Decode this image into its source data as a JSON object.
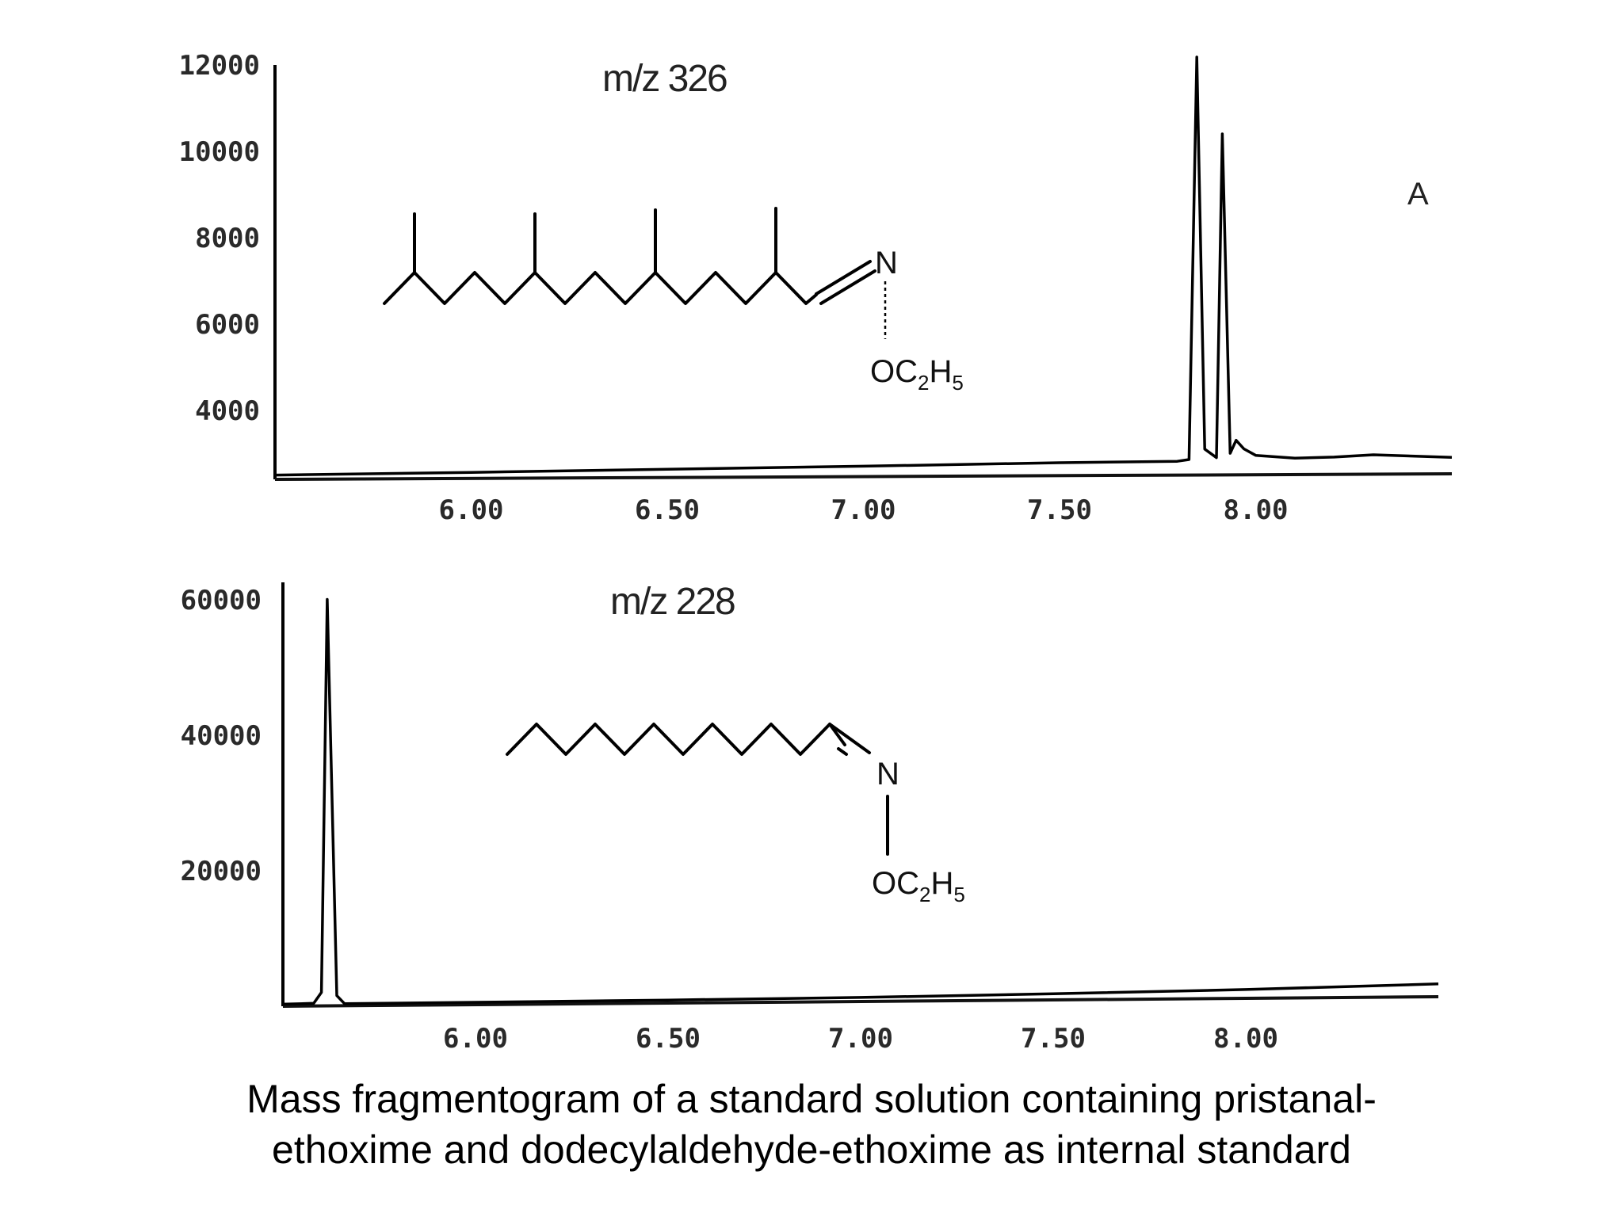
{
  "caption": {
    "line1": "Mass fragmentogram of a standard solution containing pristanal-",
    "line2": "ethoxime and dodecylaldehyde-ethoxime as internal standard"
  },
  "chart_data": [
    {
      "type": "line",
      "title": "m/z 326",
      "panel_label": "A",
      "xlabel": "",
      "ylabel": "",
      "xlim": [
        5.5,
        8.5
      ],
      "ylim": [
        2400,
        12000
      ],
      "x_ticks": [
        "6.00",
        "6.50",
        "7.00",
        "7.50",
        "8.00"
      ],
      "x_tick_values": [
        6.0,
        6.5,
        7.0,
        7.5,
        8.0
      ],
      "y_ticks": [
        "12000",
        "10000",
        "8000",
        "6000",
        "4000"
      ],
      "y_tick_values": [
        12000,
        10000,
        8000,
        6000,
        4000
      ],
      "molecule_labels": {
        "nitrogen": "N",
        "group": "OC",
        "sub1": "2",
        "sub2": "H",
        "sub3": "5"
      },
      "series": [
        {
          "name": "m/z 326",
          "points": [
            [
              5.5,
              2500
            ],
            [
              6.0,
              2540
            ],
            [
              6.5,
              2590
            ],
            [
              7.0,
              2640
            ],
            [
              7.5,
              2700
            ],
            [
              7.8,
              2720
            ],
            [
              7.83,
              2760
            ],
            [
              7.85,
              12200
            ],
            [
              7.87,
              3000
            ],
            [
              7.9,
              2800
            ],
            [
              7.915,
              10300
            ],
            [
              7.935,
              2900
            ],
            [
              7.95,
              3200
            ],
            [
              7.97,
              3000
            ],
            [
              8.0,
              2850
            ],
            [
              8.1,
              2780
            ],
            [
              8.2,
              2800
            ],
            [
              8.3,
              2850
            ],
            [
              8.5,
              2780
            ]
          ]
        }
      ]
    },
    {
      "type": "line",
      "title": "m/z 228",
      "xlabel": "",
      "ylabel": "",
      "xlim": [
        5.5,
        8.5
      ],
      "ylim": [
        0,
        60000
      ],
      "x_ticks": [
        "6.00",
        "6.50",
        "7.00",
        "7.50",
        "8.00"
      ],
      "x_tick_values": [
        6.0,
        6.5,
        7.0,
        7.5,
        8.0
      ],
      "y_ticks": [
        "60000",
        "40000",
        "20000"
      ],
      "y_tick_values": [
        60000,
        40000,
        20000
      ],
      "molecule_labels": {
        "nitrogen": "N",
        "group": "OC",
        "sub1": "2",
        "sub2": "H",
        "sub3": "5"
      },
      "series": [
        {
          "name": "m/z 228",
          "points": [
            [
              5.5,
              300
            ],
            [
              5.58,
              400
            ],
            [
              5.6,
              2000
            ],
            [
              5.615,
              60000
            ],
            [
              5.64,
              1500
            ],
            [
              5.66,
              300
            ],
            [
              6.0,
              350
            ],
            [
              6.5,
              450
            ],
            [
              7.0,
              600
            ],
            [
              7.5,
              900
            ],
            [
              8.0,
              1300
            ],
            [
              8.5,
              1900
            ]
          ]
        }
      ]
    }
  ]
}
